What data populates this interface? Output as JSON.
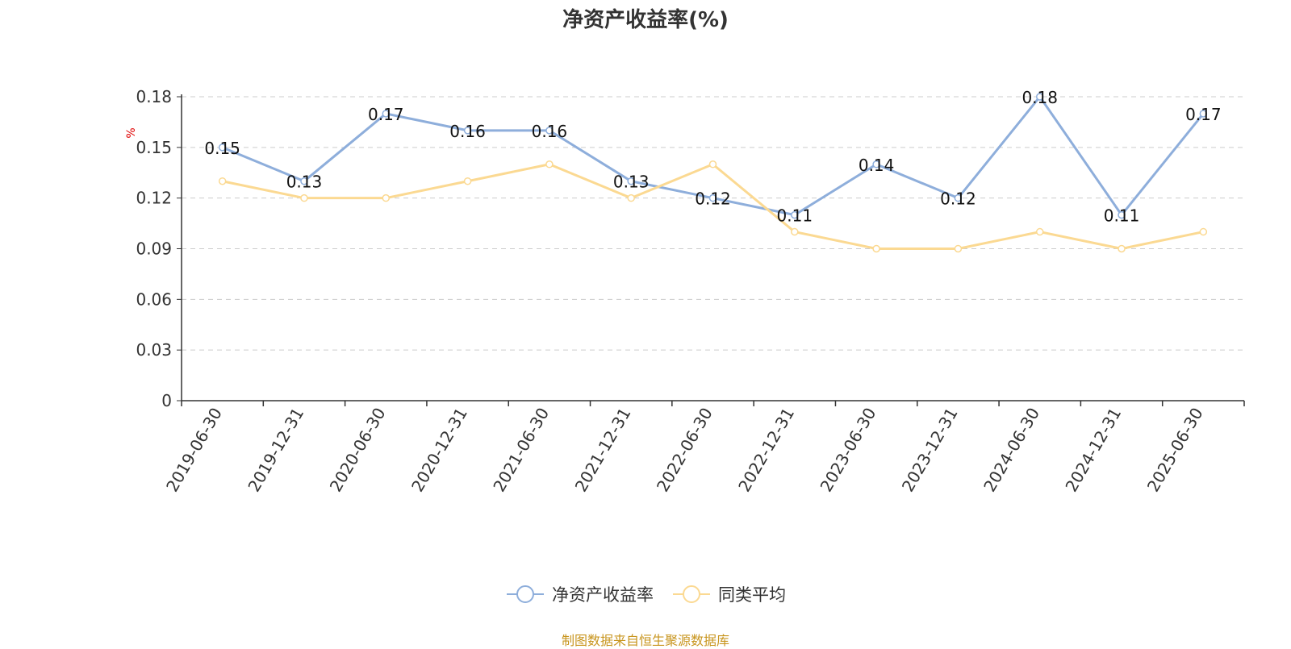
{
  "chart_data": {
    "type": "line",
    "title": "净资产收益率(%)",
    "unit_label": "%",
    "categories": [
      "2019-06-30",
      "2019-12-31",
      "2020-06-30",
      "2020-12-31",
      "2021-06-30",
      "2021-12-31",
      "2022-06-30",
      "2022-12-31",
      "2023-06-30",
      "2023-12-31",
      "2024-06-30",
      "2024-12-31",
      "2025-06-30"
    ],
    "series": [
      {
        "name": "净资产收益率",
        "color": "#8eaedb",
        "show_labels": true,
        "values": [
          0.15,
          0.13,
          0.17,
          0.16,
          0.16,
          0.13,
          0.12,
          0.11,
          0.14,
          0.12,
          0.18,
          0.11,
          0.17
        ]
      },
      {
        "name": "同类平均",
        "color": "#fbd992",
        "show_labels": false,
        "values": [
          0.13,
          0.12,
          0.12,
          0.13,
          0.14,
          0.12,
          0.14,
          0.1,
          0.09,
          0.09,
          0.1,
          0.09,
          0.1
        ]
      }
    ],
    "y_ticks": [
      "0",
      "0.03",
      "0.06",
      "0.09",
      "0.12",
      "0.15",
      "0.18"
    ],
    "ylim": [
      0,
      0.18
    ],
    "grid": "horizontal dashed",
    "legend_position": "bottom-center"
  },
  "footer": {
    "source_note": "制图数据来自恒生聚源数据库"
  }
}
